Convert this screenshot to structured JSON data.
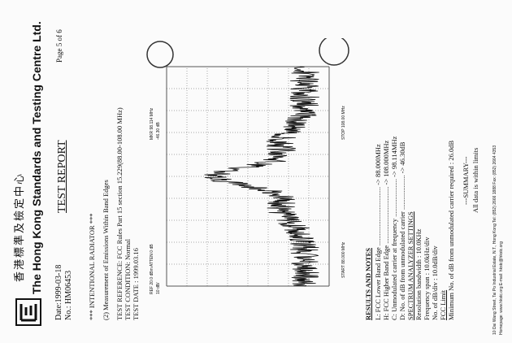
{
  "header": {
    "company_chinese": "香港標準及檢定中心",
    "company": "The Hong Kong Standards and Testing Centre Ltd.",
    "date": "Date:1999-03-18",
    "number": "No.: HM06453",
    "title": "TEST REPORT",
    "page": "Page 5 of 6"
  },
  "body": {
    "heading": "*** INTENTIONAL RADIATOR ***",
    "subheading": "(2) Measurement of Emissions Within Band Edges",
    "test_reference": "TEST REFERENCE: FCC Rules Part 15 section 15.229(88.00-108.00 MHz)",
    "test_condition": "TEST CONDITION: Normal",
    "test_date": "TEST DATE          : 1999.03.16"
  },
  "plot": {
    "ref": "REF 20.0 dBm  ATTEN 0 dB",
    "atten": "10 dB/",
    "marker": "MKR 98.114 MHz",
    "marker_level": "-46.30 dB",
    "start": "START 88.000 MHz",
    "stop": "STOP 108.00 MHz"
  },
  "results": {
    "heading": "RESULTS AND NOTES",
    "lines": [
      "L: FCC Lower Band Edge .................................. -> 88.000MHz",
      "H: FCC Higher Band Edge ................................. -> 108.000MHz",
      "C: Unmodulated carrier at frequency ...................... -> 98.114MHz",
      "D: No. of dB from unmodulated carrier .................... -> 46.30dB",
      "SPECTRUM ANALYZER SETTINGS",
      "Resolution bandwidth   : 10.0KHz",
      "Frequency span          : 10.0kHz/div",
      "No. of dB/div              : 10.0dB/div",
      "FCC Limit",
      "Minimum No. of dB from unmodulated carrier required : 26.0dB"
    ],
    "summary": "---SUMMARY---",
    "summary_text": "All data is within limits"
  },
  "footer": {
    "address": "10 Dai Wang Street, Tai Po Industrial Estate, N.T., Hong Kong   Tel: (852) 2666 1888   Fax: (852) 2664 4353",
    "web": "Homepage: www.hkstc.org   E-mail: hkstc@hkstc.org"
  }
}
